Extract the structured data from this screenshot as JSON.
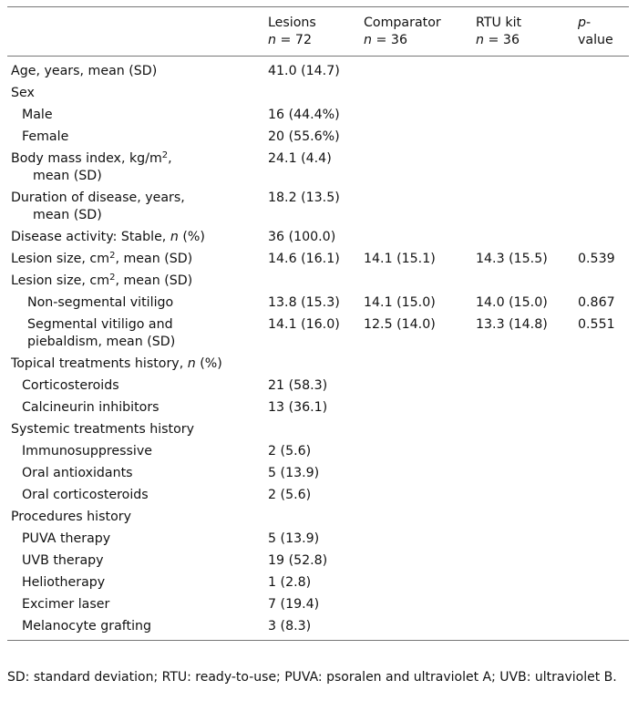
{
  "headers": {
    "lesions": "Lesions",
    "lesions_n": "72",
    "comparator": "Comparator",
    "comparator_n": "36",
    "rtu": "RTU kit",
    "rtu_n": "36",
    "pvalue_p": "p",
    "pvalue_dash": "-",
    "pvalue_word": "value",
    "n_letter": "n",
    "eq": " = "
  },
  "rows": {
    "age": {
      "label": "Age, years, mean (SD)",
      "lesions": "41.0 (14.7)"
    },
    "sex": {
      "label": "Sex"
    },
    "male": {
      "label": "Male",
      "lesions": "16 (44.4%)"
    },
    "female": {
      "label": "Female",
      "lesions": "20 (55.6%)"
    },
    "bmi": {
      "label_a": "Body mass index, kg/m",
      "sup": "2",
      "label_b": ",",
      "label_c": "mean (SD)",
      "lesions": "24.1 (4.4)"
    },
    "duration": {
      "label_a": "Duration of disease, years,",
      "label_b": "mean (SD)",
      "lesions": "18.2 (13.5)"
    },
    "activity": {
      "label_a": "Disease activity: Stable, ",
      "italic": "n",
      "label_b": " (%)",
      "lesions": "36 (100.0)"
    },
    "lesion_size1": {
      "label_a": "Lesion size, cm",
      "sup": "2",
      "label_b": ", mean (SD)",
      "lesions": "14.6 (16.1)",
      "comparator": "14.1 (15.1)",
      "rtu": "14.3 (15.5)",
      "pvalue": "0.539"
    },
    "lesion_size2": {
      "label_a": "Lesion size, cm",
      "sup": "2",
      "label_b": ", mean (SD)"
    },
    "nonseg": {
      "label": "Non-segmental vitiligo",
      "lesions": "13.8 (15.3)",
      "comparator": "14.1 (15.0)",
      "rtu": "14.0 (15.0)",
      "pvalue": "0.867"
    },
    "seg": {
      "label_a": "Segmental vitiligo and",
      "label_b": "piebaldism, mean (SD)",
      "lesions": "14.1 (16.0)",
      "comparator": "12.5 (14.0)",
      "rtu": "13.3 (14.8)",
      "pvalue": "0.551"
    },
    "topical": {
      "label_a": "Topical treatments history, ",
      "italic": "n",
      "label_b": " (%)"
    },
    "cortico": {
      "label": "Corticosteroids",
      "lesions": "21 (58.3)"
    },
    "calcineurin": {
      "label": "Calcineurin inhibitors",
      "lesions": "13 (36.1)"
    },
    "systemic": {
      "label": "Systemic treatments history"
    },
    "immuno": {
      "label": "Immunosuppressive",
      "lesions": "2 (5.6)"
    },
    "antiox": {
      "label": "Oral antioxidants",
      "lesions": "5 (13.9)"
    },
    "oralcort": {
      "label": "Oral corticosteroids",
      "lesions": "2 (5.6)"
    },
    "procedures": {
      "label": "Procedures history"
    },
    "puva": {
      "label": "PUVA therapy",
      "lesions": "5 (13.9)"
    },
    "uvb": {
      "label": "UVB therapy",
      "lesions": "19 (52.8)"
    },
    "helio": {
      "label": "Heliotherapy",
      "lesions": "1 (2.8)"
    },
    "excimer": {
      "label": "Excimer laser",
      "lesions": "7 (19.4)"
    },
    "melano": {
      "label": "Melanocyte grafting",
      "lesions": "3 (8.3)"
    }
  },
  "footnote": "SD: standard deviation; RTU: ready-to-use; PUVA: psoralen and ultraviolet A; UVB: ultraviolet B."
}
